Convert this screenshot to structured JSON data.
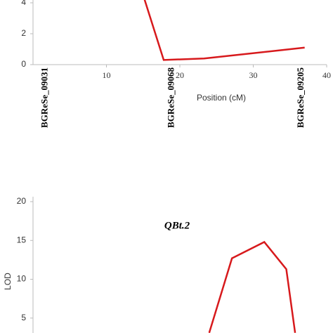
{
  "chart_data": [
    {
      "type": "line",
      "x_label": "Position (cM)",
      "series": [
        {
          "color": "#d7191c",
          "x": [
            15.2,
            17.8,
            23.3,
            37.0
          ],
          "values": [
            4.2,
            0.3,
            0.4,
            1.1
          ]
        }
      ],
      "markers": [
        {
          "label": "BGReSe_09031",
          "position": 1.2
        },
        {
          "label": "BGReSe_09068",
          "position": 18.4
        },
        {
          "label": "BGReSe_09205",
          "position": 36.1
        }
      ],
      "xlim": [
        0,
        40
      ],
      "xticks": [
        10,
        20,
        30,
        40
      ],
      "ylim": [
        0,
        4
      ],
      "yticks": [
        0,
        2,
        4
      ]
    },
    {
      "type": "line",
      "title": "QBt.2",
      "y_label": "LOD",
      "series": [
        {
          "color": "#d7191c",
          "x": [
            24.0,
            27.1,
            31.5,
            34.5,
            35.7
          ],
          "values": [
            3.1,
            12.7,
            14.8,
            11.3,
            3.1
          ]
        }
      ],
      "xlim": [
        0,
        40
      ],
      "ylim": [
        0,
        20
      ],
      "yticks": [
        5,
        10,
        15,
        20
      ]
    }
  ]
}
